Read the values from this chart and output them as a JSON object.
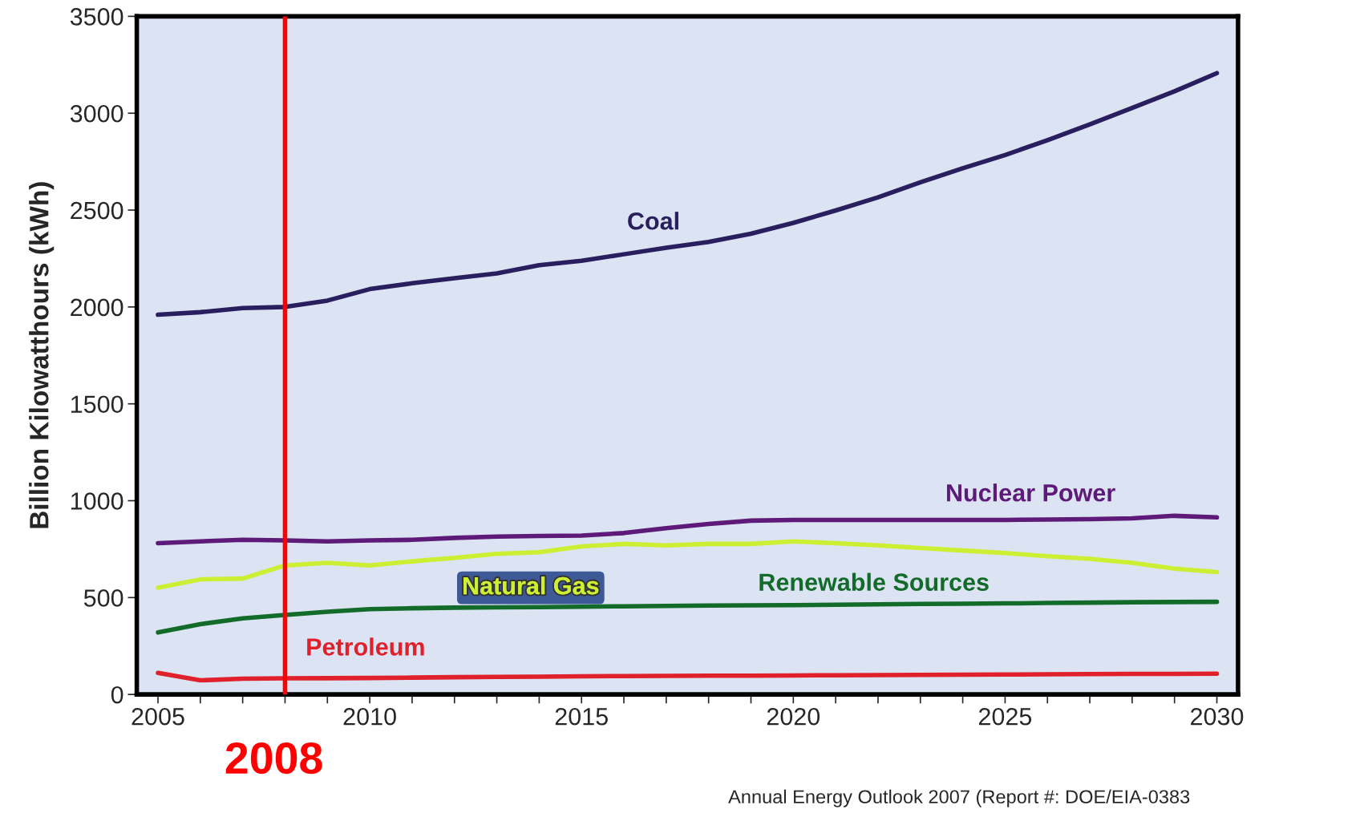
{
  "chart_data": {
    "type": "line",
    "ylabel": "Billion Kilowatthours (kWh)",
    "x": [
      2005,
      2006,
      2007,
      2008,
      2009,
      2010,
      2011,
      2012,
      2013,
      2014,
      2015,
      2016,
      2017,
      2018,
      2019,
      2020,
      2021,
      2022,
      2023,
      2024,
      2025,
      2026,
      2027,
      2028,
      2029,
      2030
    ],
    "series": [
      {
        "name": "Coal",
        "color": "#2a1f5e",
        "values": [
          1960,
          1973,
          1994,
          2000,
          2033,
          2092,
          2122,
          2148,
          2173,
          2216,
          2238,
          2272,
          2306,
          2336,
          2378,
          2434,
          2498,
          2566,
          2643,
          2716,
          2784,
          2861,
          2942,
          3027,
          3113,
          3207
        ]
      },
      {
        "name": "Nuclear Power",
        "color": "#5e1a78",
        "values": [
          781,
          790,
          798,
          795,
          790,
          795,
          798,
          808,
          815,
          818,
          820,
          833,
          858,
          880,
          897,
          901,
          901,
          901,
          901,
          901,
          901,
          903,
          905,
          909,
          922,
          914
        ]
      },
      {
        "name": "Natural Gas",
        "color": "#ccee33",
        "values": [
          551,
          594,
          598,
          666,
          679,
          666,
          687,
          705,
          726,
          734,
          764,
          777,
          769,
          777,
          777,
          790,
          781,
          769,
          756,
          743,
          730,
          713,
          700,
          679,
          649,
          632
        ]
      },
      {
        "name": "Renewable Sources",
        "color": "#136b2a",
        "values": [
          320,
          363,
          393,
          410,
          427,
          440,
          445,
          448,
          450,
          451,
          453,
          455,
          457,
          459,
          460,
          461,
          463,
          465,
          467,
          468,
          470,
          472,
          474,
          476,
          477,
          478
        ]
      },
      {
        "name": "Petroleum",
        "color": "#e0202a",
        "values": [
          111,
          73,
          81,
          83,
          84,
          85,
          87,
          89,
          91,
          92,
          94,
          95,
          96,
          97,
          97,
          98,
          99,
          100,
          101,
          102,
          103,
          104,
          105,
          106,
          106,
          107
        ]
      }
    ],
    "xlim": [
      2004.5,
      2030.5
    ],
    "xticks": [
      2005,
      {
        "value": 2006,
        "label": null
      },
      {
        "value": 2007,
        "label": null
      },
      {
        "value": 2008,
        "label": null
      },
      {
        "value": 2009,
        "label": null
      },
      2010,
      {
        "value": 2011,
        "label": null
      },
      {
        "value": 2012,
        "label": null
      },
      {
        "value": 2013,
        "label": null
      },
      {
        "value": 2014,
        "label": null
      },
      2015,
      {
        "value": 2016,
        "label": null
      },
      {
        "value": 2017,
        "label": null
      },
      {
        "value": 2018,
        "label": null
      },
      {
        "value": 2019,
        "label": null
      },
      2020,
      {
        "value": 2021,
        "label": null
      },
      {
        "value": 2022,
        "label": null
      },
      {
        "value": 2023,
        "label": null
      },
      {
        "value": 2024,
        "label": null
      },
      2025,
      {
        "value": 2026,
        "label": null
      },
      {
        "value": 2027,
        "label": null
      },
      {
        "value": 2028,
        "label": null
      },
      {
        "value": 2029,
        "label": null
      },
      2030
    ],
    "ylim": [
      0,
      3500
    ],
    "yticks": [
      0,
      500,
      1000,
      1500,
      2000,
      2500,
      3000,
      3500
    ],
    "ref_lines": [
      {
        "axis": "x",
        "value": 2008,
        "label": "2008",
        "color": "#ff0000"
      }
    ],
    "annotations": [
      "Annual Energy Outlook 2007 (Report #: DOE/EIA-0383"
    ],
    "grid": false,
    "legend": false,
    "marker": "none",
    "line_style": "solid"
  }
}
